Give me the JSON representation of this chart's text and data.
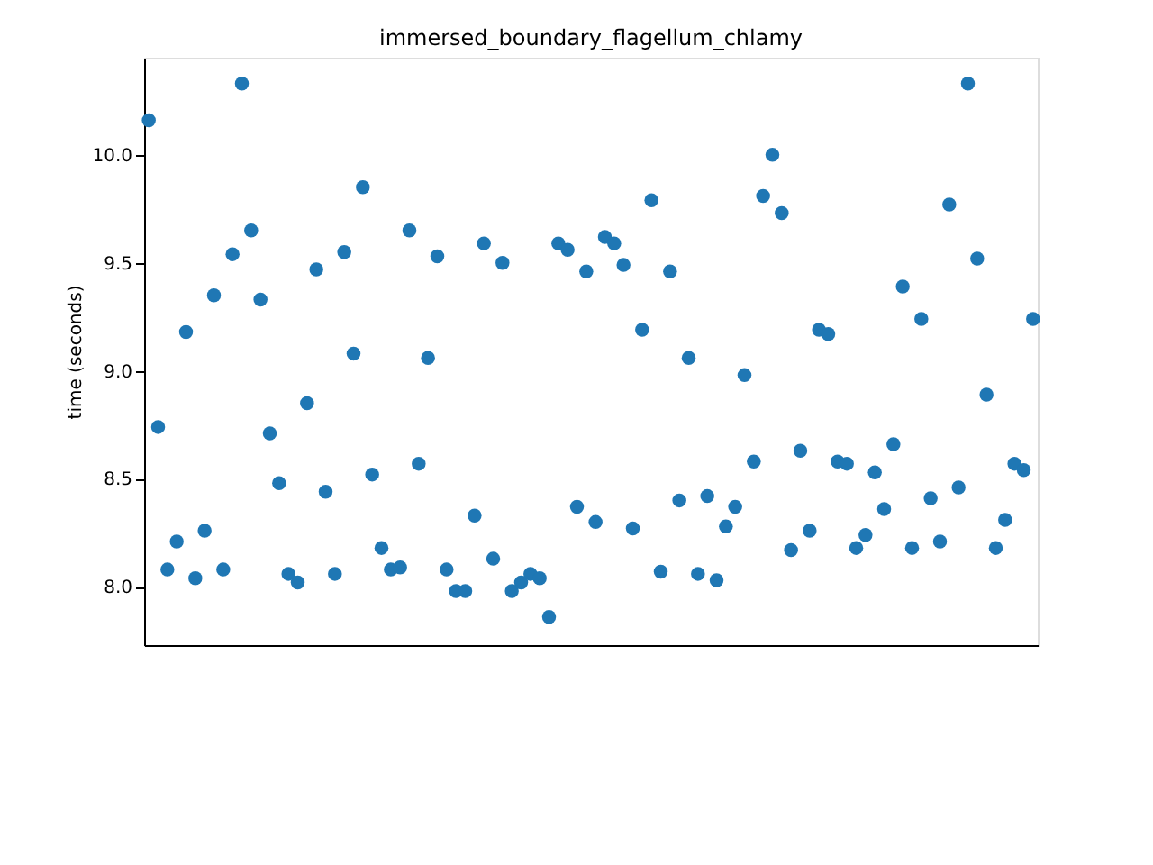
{
  "chart_data": {
    "type": "scatter",
    "title": "immersed_boundary_flagellum_chlamy",
    "ylabel": "time (seconds)",
    "categories": [
      null,
      null,
      null,
      null,
      null,
      null,
      null,
      null,
      null,
      null,
      null,
      null,
      null,
      null,
      null,
      null,
      null,
      null,
      null,
      null,
      null,
      null,
      null,
      null,
      null,
      null,
      null,
      null,
      null,
      null,
      null,
      null,
      null,
      null,
      null,
      null,
      null,
      null,
      null,
      null,
      null,
      null,
      null,
      null,
      null,
      null,
      null,
      null,
      null,
      null,
      null,
      null,
      null,
      null,
      null,
      null,
      null,
      null,
      null,
      null,
      null,
      null,
      null,
      null,
      null,
      null,
      null,
      null,
      null,
      null,
      null,
      null,
      null,
      null,
      null,
      null,
      null,
      null,
      null,
      null,
      null,
      null,
      null,
      null,
      null,
      null,
      null,
      null,
      null,
      null,
      null,
      null,
      null,
      null,
      null,
      null
    ],
    "series": [
      {
        "color": "#1f77b4",
        "values": [
          10.16,
          8.74,
          8.08,
          8.21,
          9.18,
          8.04,
          8.26,
          9.35,
          8.08,
          9.54,
          10.33,
          9.65,
          9.33,
          8.71,
          8.48,
          8.06,
          8.02,
          8.85,
          9.47,
          8.44,
          8.06,
          9.55,
          9.08,
          9.85,
          8.52,
          8.18,
          8.08,
          8.09,
          9.65,
          8.57,
          9.06,
          9.53,
          8.08,
          7.98,
          7.98,
          8.33,
          9.59,
          8.13,
          9.5,
          7.98,
          8.02,
          8.06,
          8.04,
          7.86,
          9.59,
          9.56,
          8.37,
          9.46,
          8.3,
          9.62,
          9.59,
          9.49,
          8.27,
          9.19,
          9.79,
          8.07,
          9.46,
          8.4,
          9.06,
          8.06,
          8.42,
          8.03,
          8.28,
          8.37,
          8.98,
          8.58,
          9.81,
          10.0,
          9.73,
          8.17,
          8.63,
          8.26,
          9.19,
          9.17,
          8.58,
          8.57,
          8.18,
          8.24,
          8.53,
          8.36,
          8.66,
          9.39,
          8.18,
          9.24,
          8.41,
          8.21,
          9.77,
          8.46,
          10.33,
          9.52,
          8.89,
          8.18,
          8.31,
          8.57,
          8.54,
          9.24
        ]
      }
    ],
    "ylim": [
      7.73,
      10.45
    ],
    "yticks": [
      {
        "value": 8,
        "label": "8.0"
      },
      8.5,
      {
        "value": 9,
        "label": "9.0"
      },
      9.5,
      {
        "value": 10,
        "label": "10.0"
      }
    ],
    "marker": "circle",
    "grid": false,
    "tick_labels": "y"
  }
}
